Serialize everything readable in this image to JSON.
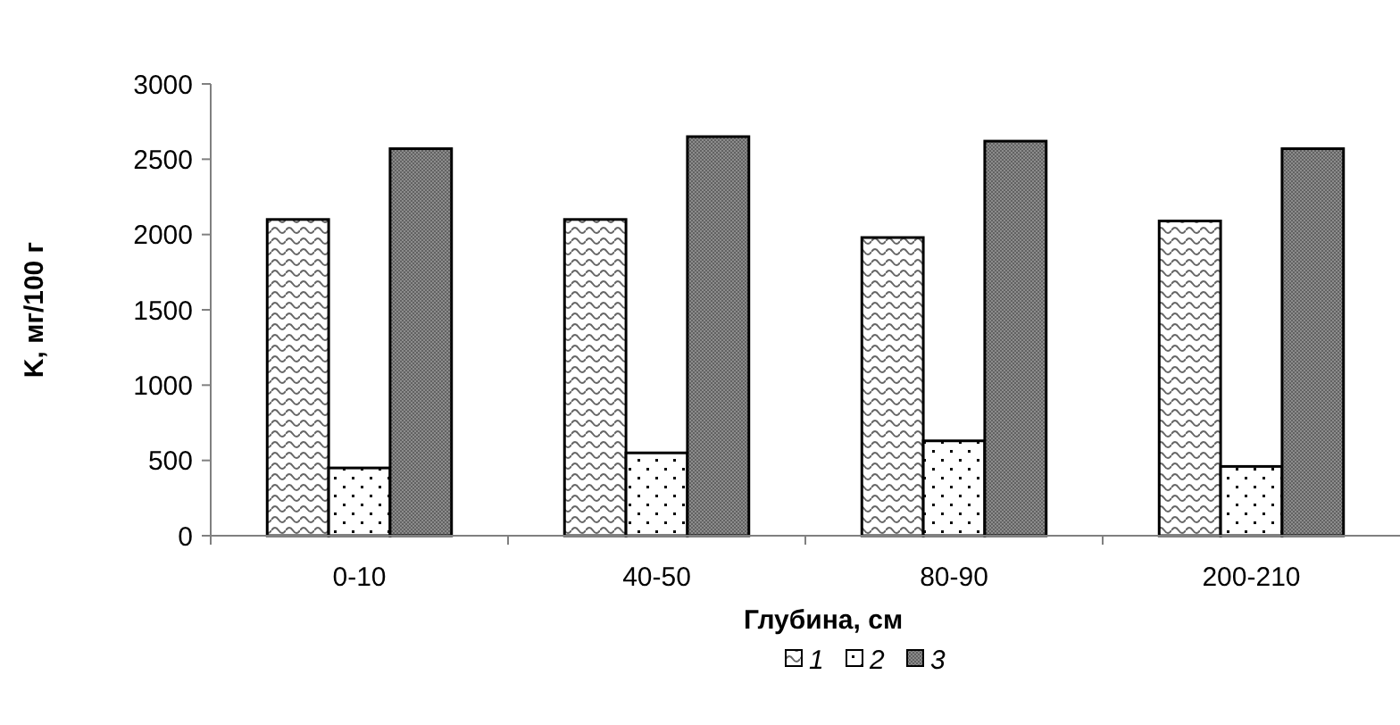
{
  "chart_data": {
    "type": "bar",
    "xlabel": "Глубина, см",
    "ylabel": "K, мг/100 г",
    "categories": [
      "0-10",
      "40-50",
      "80-90",
      "200-210"
    ],
    "series": [
      {
        "name": "1",
        "color": "#000000",
        "values": [
          2100,
          2100,
          1980,
          2090
        ]
      },
      {
        "name": "2",
        "color": "#000000",
        "values": [
          450,
          550,
          630,
          460
        ]
      },
      {
        "name": "3",
        "color": "#000000",
        "values": [
          2570,
          2650,
          2620,
          2570
        ]
      }
    ],
    "ylim": [
      0,
      3000
    ],
    "yticks": [
      0,
      500,
      1000,
      1500,
      2000,
      2500,
      3000
    ],
    "grid": false,
    "legend": "bottom"
  }
}
